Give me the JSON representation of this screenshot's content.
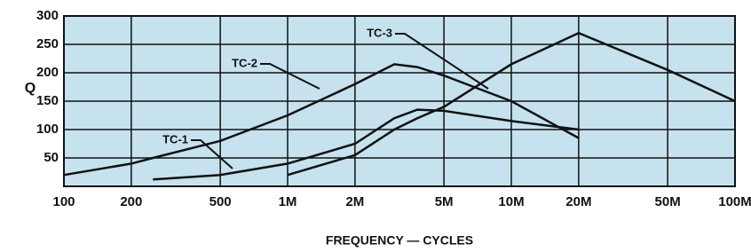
{
  "chart_data": {
    "type": "line",
    "y_label": "Q",
    "x_label": "FREQUENCY — CYCLES",
    "x": [
      100,
      200,
      250,
      500,
      1000,
      2000,
      3000,
      3800,
      5000,
      10000,
      20000,
      50000,
      100000
    ],
    "series": [
      {
        "name": "TC-1",
        "color": "#111111",
        "values": [
          null,
          null,
          12,
          20,
          40,
          75,
          120,
          135,
          133,
          115,
          100,
          null,
          null
        ]
      },
      {
        "name": "TC-2",
        "color": "#111111",
        "values": [
          20,
          40,
          50,
          80,
          125,
          180,
          215,
          210,
          195,
          150,
          85,
          null,
          null
        ]
      },
      {
        "name": "TC-3",
        "color": "#111111",
        "values": [
          null,
          null,
          null,
          null,
          20,
          55,
          100,
          120,
          140,
          215,
          270,
          205,
          150
        ]
      }
    ],
    "xlim": [
      100,
      100000
    ],
    "x_log": true,
    "xticks": [
      100,
      200,
      500,
      {
        "value": 1000,
        "label": "1M"
      },
      {
        "value": 2000,
        "label": "2M"
      },
      {
        "value": 5000,
        "label": "5M"
      },
      {
        "value": 10000,
        "label": "10M"
      },
      {
        "value": 20000,
        "label": "20M"
      },
      {
        "value": 50000,
        "label": "50M"
      },
      {
        "value": 100000,
        "label": "100M"
      }
    ],
    "ylim": [
      0,
      300
    ],
    "yticks": [
      50,
      100,
      150,
      200,
      250,
      300
    ],
    "grid": true,
    "background": "#c6e2ee"
  }
}
